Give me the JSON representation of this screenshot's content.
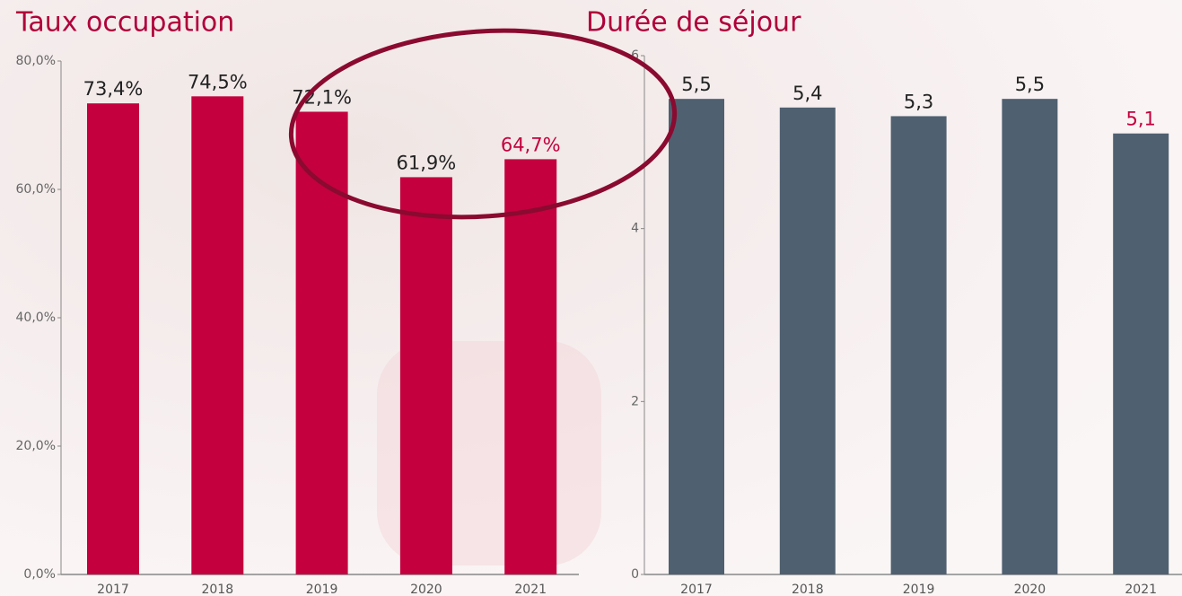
{
  "chart_data": [
    {
      "type": "bar",
      "title": "Taux occupation",
      "categories": [
        "2017",
        "2018",
        "2019",
        "2020",
        "2021"
      ],
      "values": [
        73.4,
        74.5,
        72.1,
        61.9,
        64.7
      ],
      "value_labels": [
        "73,4%",
        "74,5%",
        "72,1%",
        "61,9%",
        "64,7%"
      ],
      "value_label_colors": [
        "#222222",
        "#222222",
        "#222222",
        "#222222",
        "#c4003f"
      ],
      "color": "#c4003f",
      "ylim": [
        0,
        80
      ],
      "yticks": [
        {
          "value": 0,
          "label": "0,0%"
        },
        {
          "value": 20,
          "label": "20,0%"
        },
        {
          "value": 40,
          "label": "40,0%"
        },
        {
          "value": 60,
          "label": "60,0%"
        },
        {
          "value": 80,
          "label": "80,0%"
        }
      ],
      "grid": false
    },
    {
      "type": "bar",
      "title": "Durée de séjour",
      "categories": [
        "2017",
        "2018",
        "2019",
        "2020",
        "2021"
      ],
      "values": [
        5.5,
        5.4,
        5.3,
        5.5,
        5.1
      ],
      "value_labels": [
        "5,5",
        "5,4",
        "5,3",
        "5,5",
        "5,1"
      ],
      "value_label_colors": [
        "#222222",
        "#222222",
        "#222222",
        "#222222",
        "#c4003f"
      ],
      "color": "#4f6070",
      "ylim": [
        0,
        6
      ],
      "yticks": [
        0,
        2,
        4,
        6
      ],
      "grid": false
    }
  ]
}
